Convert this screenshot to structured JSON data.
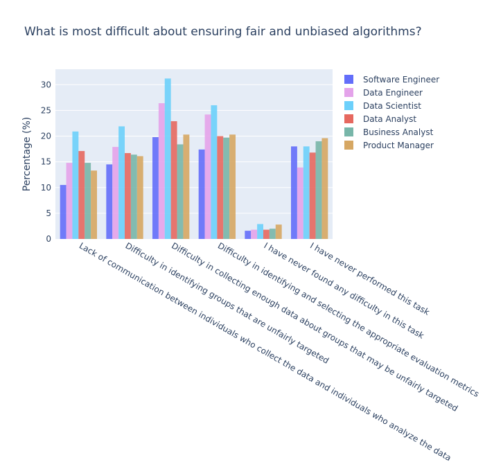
{
  "chart_data": {
    "type": "bar",
    "title": "What is most difficult about ensuring fair and unbiased algorithms?",
    "xlabel": "",
    "ylabel": "Percentage (%)",
    "ylim": [
      0,
      33
    ],
    "yticks": [
      0,
      5,
      10,
      15,
      20,
      25,
      30
    ],
    "grid": true,
    "legend_position": "right",
    "categories": [
      "Lack of communication between individuals who collect the data and individuals who analyze the data",
      "Difficulty in identifying groups that are unfairly targeted",
      "Difficulty in collecting enough data about groups that may be unfairly targeted",
      "Difficulty in identifying and selecting the appropriate evaluation metrics",
      "I have never found any difficulty in this task",
      "I have never performed this task"
    ],
    "series": [
      {
        "name": "Software Engineer",
        "color": "#636efa",
        "values": [
          10.5,
          14.5,
          19.8,
          17.4,
          1.6,
          18.0
        ]
      },
      {
        "name": "Data Engineer",
        "color": "#e4a3ea",
        "values": [
          14.8,
          17.9,
          26.4,
          24.2,
          1.8,
          13.9
        ]
      },
      {
        "name": "Data Scientist",
        "color": "#6cd0fb",
        "values": [
          20.9,
          21.9,
          31.2,
          26.0,
          2.9,
          18.0
        ]
      },
      {
        "name": "Data Analyst",
        "color": "#e6685f",
        "values": [
          17.1,
          16.7,
          22.9,
          20.0,
          1.8,
          16.8
        ]
      },
      {
        "name": "Business Analyst",
        "color": "#78b6a9",
        "values": [
          14.8,
          16.4,
          18.4,
          19.7,
          2.0,
          19.0
        ]
      },
      {
        "name": "Product Manager",
        "color": "#d6a763",
        "values": [
          13.3,
          16.1,
          20.3,
          20.3,
          2.8,
          19.6
        ]
      }
    ]
  }
}
